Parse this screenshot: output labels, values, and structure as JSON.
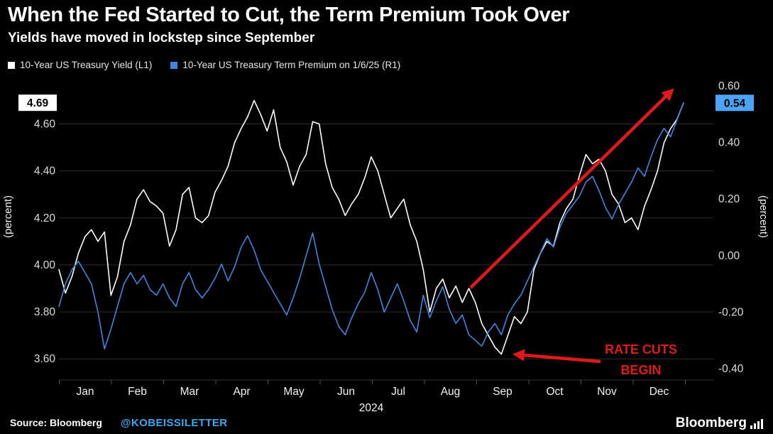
{
  "header": {
    "title": "When the Fed Started to Cut, the Term Premium Took Over",
    "subtitle": "Yields have moved in lockstep since September"
  },
  "legend": [
    {
      "label": "10-Year US Treasury Yield (L1)",
      "color": "#ffffff"
    },
    {
      "label": "10-Year US Treasury Term Premium on 1/6/25 (R1)",
      "color": "#3f86e0"
    }
  ],
  "chart_data": {
    "type": "line",
    "title": "When the Fed Started to Cut, the Term Premium Took Over",
    "subtitle": "Yields have moved in lockstep since September",
    "x_months": [
      "Jan",
      "Feb",
      "Mar",
      "Apr",
      "May",
      "Jun",
      "Jul",
      "Aug",
      "Sep",
      "Oct",
      "Nov",
      "Dec"
    ],
    "x_year": "2024",
    "sampling": "8 points per month Jan-Dec 2024, final point 1/6/25",
    "grid": "horizontal",
    "background": "#000000",
    "left_axis": {
      "label": "(percent)",
      "ticks": [
        3.6,
        3.8,
        4.0,
        4.2,
        4.4,
        4.6
      ],
      "ylim": [
        3.51,
        4.81
      ],
      "current_value": "4.69",
      "badge": {
        "bg": "#ffffff",
        "text": "#000000"
      }
    },
    "right_axis": {
      "label": "(percent)",
      "ticks": [
        -0.4,
        -0.2,
        0.0,
        0.2,
        0.4,
        0.6
      ],
      "ylim": [
        -0.44,
        0.64
      ],
      "current_value": "0.54",
      "badge": {
        "bg": "#4da3f5",
        "text": "#000000"
      }
    },
    "series": [
      {
        "id": "treasury-yield",
        "name": "10-Year US Treasury Yield (L1)",
        "axis": "left",
        "color": "#ffffff",
        "values": [
          3.98,
          3.88,
          3.95,
          4.05,
          4.12,
          4.15,
          4.1,
          4.14,
          3.87,
          3.95,
          4.1,
          4.17,
          4.28,
          4.32,
          4.27,
          4.25,
          4.22,
          4.08,
          4.15,
          4.3,
          4.33,
          4.2,
          4.18,
          4.21,
          4.31,
          4.36,
          4.42,
          4.52,
          4.58,
          4.63,
          4.7,
          4.64,
          4.57,
          4.66,
          4.5,
          4.44,
          4.34,
          4.42,
          4.47,
          4.61,
          4.6,
          4.43,
          4.33,
          4.28,
          4.21,
          4.26,
          4.3,
          4.37,
          4.46,
          4.4,
          4.3,
          4.2,
          4.24,
          4.28,
          4.17,
          4.1,
          3.98,
          3.8,
          3.9,
          3.94,
          3.86,
          3.91,
          3.84,
          3.9,
          3.84,
          3.75,
          3.7,
          3.65,
          3.62,
          3.7,
          3.78,
          3.75,
          3.8,
          3.98,
          4.05,
          4.1,
          4.08,
          4.18,
          4.24,
          4.28,
          4.38,
          4.47,
          4.43,
          4.45,
          4.4,
          4.3,
          4.26,
          4.18,
          4.2,
          4.15,
          4.25,
          4.32,
          4.4,
          4.52,
          4.58,
          4.62,
          4.69
        ]
      },
      {
        "id": "term-premium",
        "name": "10-Year US Treasury Term Premium on 1/6/25 (R1)",
        "axis": "right",
        "color": "#3f86e0",
        "values": [
          -0.18,
          -0.1,
          -0.05,
          -0.02,
          -0.06,
          -0.1,
          -0.2,
          -0.33,
          -0.26,
          -0.18,
          -0.1,
          -0.06,
          -0.1,
          -0.07,
          -0.12,
          -0.14,
          -0.1,
          -0.15,
          -0.18,
          -0.1,
          -0.06,
          -0.12,
          -0.15,
          -0.12,
          -0.08,
          -0.03,
          -0.09,
          -0.04,
          0.03,
          0.07,
          0.02,
          -0.05,
          -0.09,
          -0.13,
          -0.17,
          -0.21,
          -0.15,
          -0.08,
          0.0,
          0.08,
          -0.03,
          -0.11,
          -0.19,
          -0.25,
          -0.28,
          -0.22,
          -0.17,
          -0.13,
          -0.06,
          -0.12,
          -0.2,
          -0.15,
          -0.1,
          -0.16,
          -0.23,
          -0.27,
          -0.14,
          -0.22,
          -0.16,
          -0.11,
          -0.19,
          -0.24,
          -0.21,
          -0.28,
          -0.3,
          -0.32,
          -0.27,
          -0.24,
          -0.28,
          -0.21,
          -0.17,
          -0.14,
          -0.09,
          -0.04,
          0.01,
          0.06,
          0.03,
          0.1,
          0.15,
          0.18,
          0.21,
          0.26,
          0.28,
          0.23,
          0.17,
          0.13,
          0.18,
          0.22,
          0.26,
          0.31,
          0.28,
          0.35,
          0.41,
          0.45,
          0.42,
          0.48,
          0.54
        ]
      }
    ],
    "annotation_color": "#e01a1a",
    "annotations": [
      {
        "type": "arrow",
        "name": "trend-up-arrow",
        "from": [
          663,
          325
        ],
        "to": [
          946,
          48
        ]
      },
      {
        "type": "arrow",
        "name": "rate-cuts-pointer-arrow",
        "from": [
          846,
          429
        ],
        "to": [
          727,
          419
        ]
      },
      {
        "type": "label",
        "name": "rate-cuts-label",
        "x": 903,
        "y": 418,
        "lines": [
          "RATE CUTS",
          "BEGIN"
        ]
      }
    ]
  },
  "footer": {
    "source_label": "Source: Bloomberg",
    "handle": "@KOBEISSILETTER",
    "handle_color": "#3ba9f0",
    "brand": "Bloomberg"
  }
}
